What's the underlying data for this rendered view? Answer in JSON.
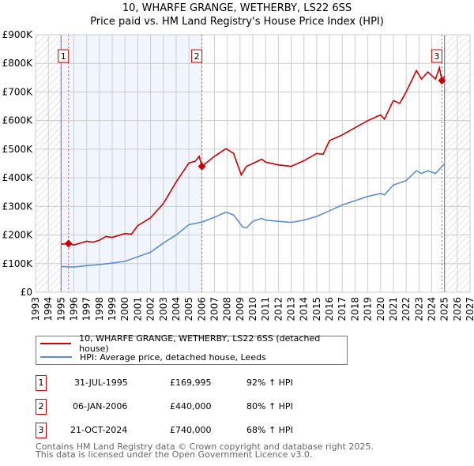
{
  "title": {
    "line1": "10, WHARFE GRANGE, WETHERBY, LS22 6SS",
    "line2": "Price paid vs. HM Land Registry's House Price Index (HPI)"
  },
  "legend": [
    {
      "label": "10, WHARFE GRANGE, WETHERBY, LS22 6SS (detached house)",
      "color": "#cc0000"
    },
    {
      "label": "HPI: Average price, detached house, Leeds",
      "color": "#5b8fd4"
    }
  ],
  "sales": [
    {
      "num": "1",
      "date": "31-JUL-1995",
      "price": "£169,995",
      "hpi": "92% ↑ HPI"
    },
    {
      "num": "2",
      "date": "06-JAN-2006",
      "price": "£440,000",
      "hpi": "80% ↑ HPI"
    },
    {
      "num": "3",
      "date": "21-OCT-2024",
      "price": "£740,000",
      "hpi": "68% ↑ HPI"
    }
  ],
  "footer": {
    "line1": "Contains HM Land Registry data © Crown copyright and database right 2025.",
    "line2": "This data is licensed under the Open Government Licence v3.0."
  },
  "chart_data": {
    "type": "line",
    "xlim": [
      1993,
      2027
    ],
    "ylim": [
      0,
      900000
    ],
    "yticks": [
      {
        "v": 0,
        "label": "£0"
      },
      {
        "v": 100000,
        "label": "£100K"
      },
      {
        "v": 200000,
        "label": "£200K"
      },
      {
        "v": 300000,
        "label": "£300K"
      },
      {
        "v": 400000,
        "label": "£400K"
      },
      {
        "v": 500000,
        "label": "£500K"
      },
      {
        "v": 600000,
        "label": "£600K"
      },
      {
        "v": 700000,
        "label": "£700K"
      },
      {
        "v": 800000,
        "label": "£800K"
      },
      {
        "v": 900000,
        "label": "£900K"
      }
    ],
    "xticks": [
      1993,
      1994,
      1995,
      1996,
      1997,
      1998,
      1999,
      2000,
      2001,
      2002,
      2003,
      2004,
      2005,
      2006,
      2007,
      2008,
      2009,
      2010,
      2011,
      2012,
      2013,
      2014,
      2015,
      2016,
      2017,
      2018,
      2019,
      2020,
      2021,
      2022,
      2023,
      2024,
      2025,
      2026,
      2027
    ],
    "grid": true,
    "data_range": [
      1995,
      2025
    ],
    "shaded_between_sales": [
      1995,
      2006.02
    ],
    "sale_points": [
      {
        "x": 1995.58,
        "y": 169995,
        "label": "1"
      },
      {
        "x": 2006.02,
        "y": 440000,
        "label": "2"
      },
      {
        "x": 2024.8,
        "y": 740000,
        "label": "3"
      }
    ],
    "series": [
      {
        "name": "10, WHARFE GRANGE, WETHERBY, LS22 6SS (detached house)",
        "color": "#cc0000",
        "x": [
          1995,
          1995.58,
          1996,
          1997,
          1997.5,
          1998,
          1998.5,
          1999,
          2000,
          2000.5,
          2001,
          2002,
          2003,
          2004,
          2005,
          2005.5,
          2005.8,
          2006.02,
          2007,
          2007.9,
          2008.5,
          2009.1,
          2009.5,
          2010,
          2010.7,
          2011,
          2012,
          2013,
          2014,
          2015,
          2015.5,
          2016,
          2017,
          2018,
          2019,
          2020,
          2020.3,
          2021,
          2021.5,
          2022,
          2022.8,
          2023.2,
          2023.7,
          2024.3,
          2024.6,
          2024.8,
          2025
        ],
        "y": [
          168000,
          170000,
          165000,
          178000,
          175000,
          182000,
          195000,
          192000,
          205000,
          203000,
          233000,
          260000,
          310000,
          385000,
          452000,
          458000,
          475000,
          440000,
          475000,
          502000,
          485000,
          410000,
          440000,
          450000,
          465000,
          455000,
          445000,
          440000,
          460000,
          485000,
          482000,
          530000,
          550000,
          575000,
          600000,
          620000,
          605000,
          670000,
          660000,
          700000,
          775000,
          745000,
          770000,
          745000,
          785000,
          740000,
          755000
        ]
      },
      {
        "name": "HPI: Average price, detached house, Leeds",
        "color": "#5b8fd4",
        "x": [
          1995,
          1996,
          1997,
          1998,
          1999,
          2000,
          2001,
          2002,
          2003,
          2004,
          2005,
          2006,
          2007,
          2007.9,
          2008.5,
          2009.2,
          2009.5,
          2010,
          2010.7,
          2011,
          2012,
          2013,
          2014,
          2015,
          2016,
          2017,
          2018,
          2019,
          2020,
          2020.3,
          2021,
          2022,
          2022.8,
          2023.2,
          2023.7,
          2024.3,
          2024.8,
          2025
        ],
        "y": [
          90000,
          88000,
          93000,
          97000,
          102000,
          108000,
          124000,
          140000,
          172000,
          200000,
          236000,
          245000,
          262000,
          280000,
          270000,
          228000,
          225000,
          248000,
          258000,
          252000,
          248000,
          244000,
          252000,
          265000,
          285000,
          305000,
          320000,
          335000,
          345000,
          340000,
          375000,
          390000,
          425000,
          415000,
          425000,
          415000,
          440000,
          448000
        ]
      }
    ]
  }
}
